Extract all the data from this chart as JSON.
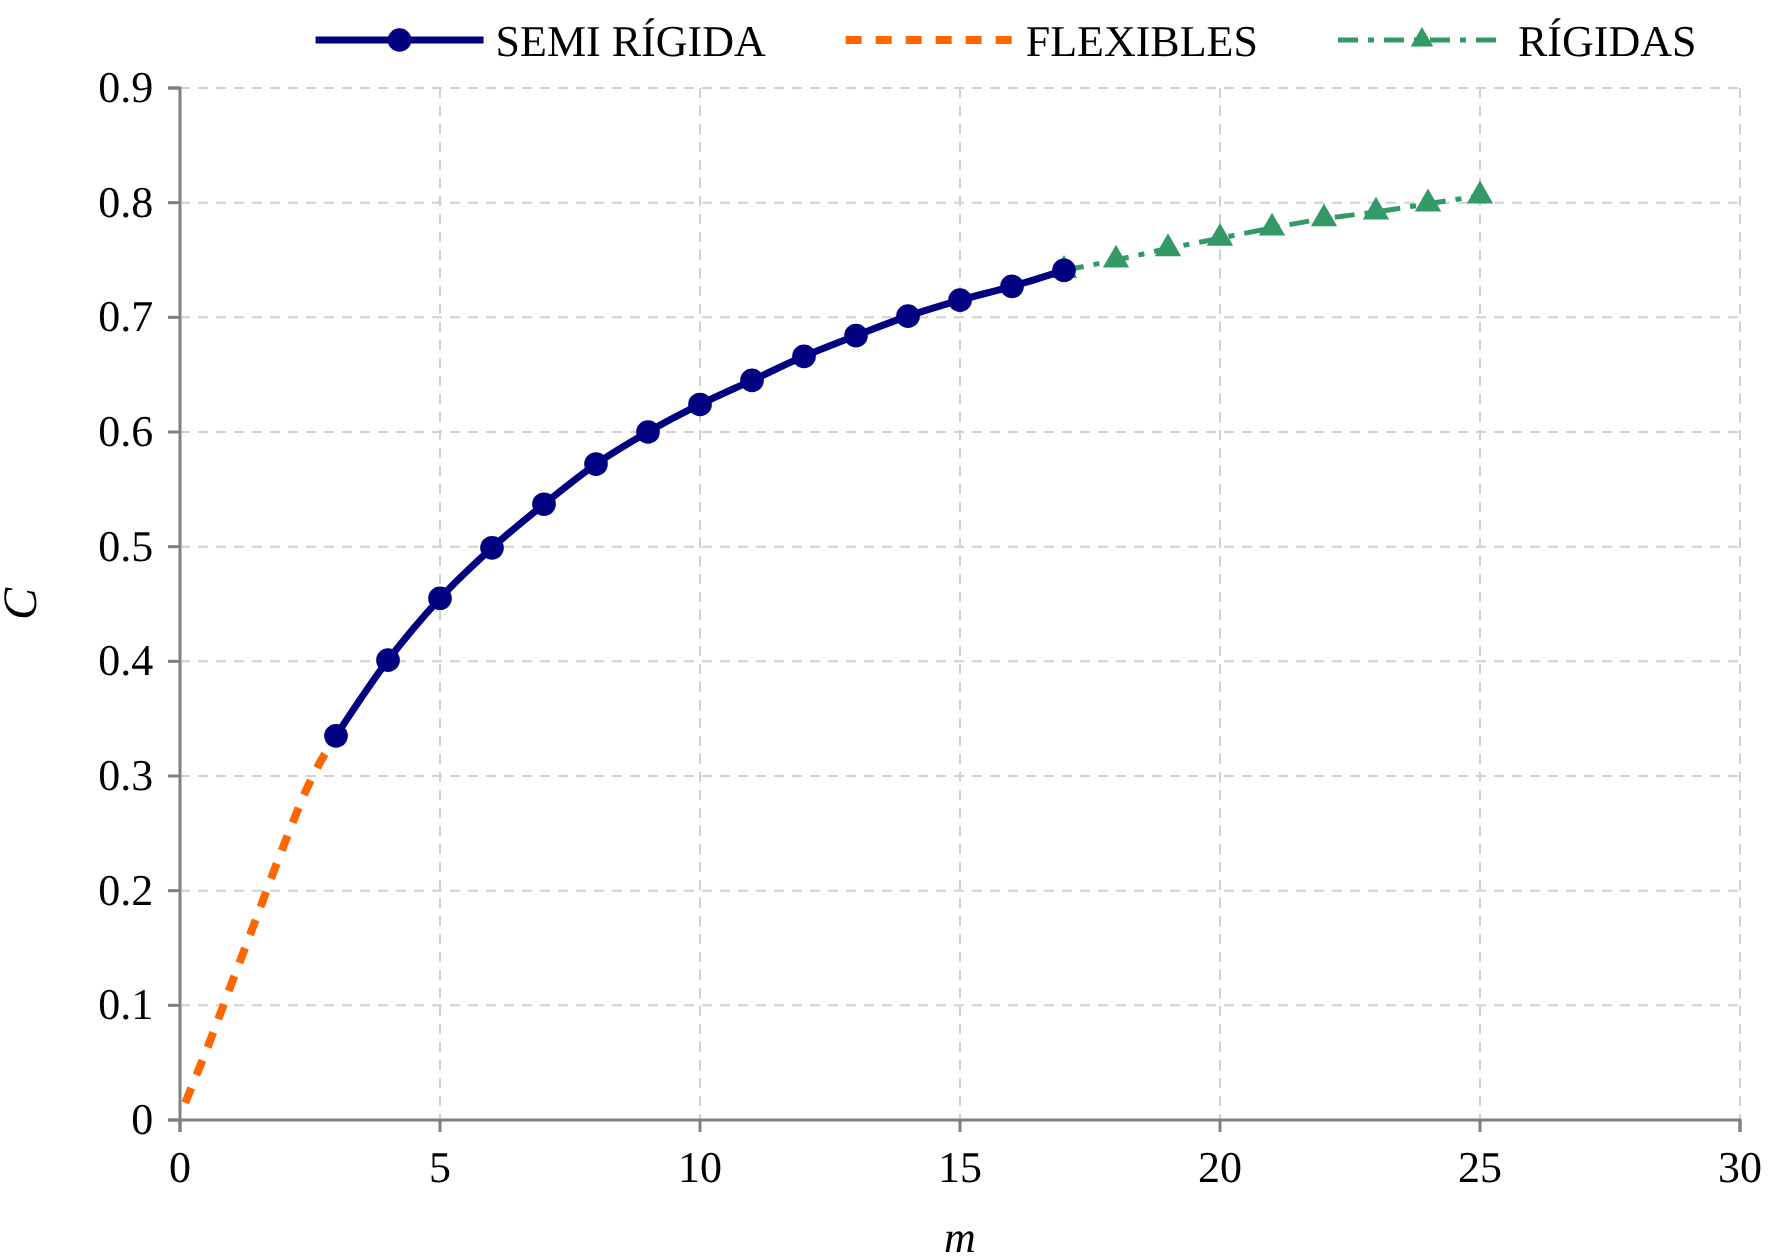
{
  "chart_data": {
    "type": "line",
    "xlabel": "m",
    "ylabel": "C",
    "xlim": [
      0,
      30
    ],
    "xticks": [
      0,
      5,
      10,
      15,
      20,
      25,
      30
    ],
    "ylim": [
      0,
      0.9
    ],
    "yticks": [
      0,
      0.1,
      0.2,
      0.3,
      0.4,
      0.5,
      0.6,
      0.7,
      0.8,
      0.9
    ],
    "grid": true,
    "legend": "top",
    "series": [
      {
        "name": "SEMI RÍGIDA",
        "color": "#000080",
        "marker": "circle",
        "line_style": "solid",
        "x": [
          3,
          4,
          5,
          6,
          7,
          8,
          9,
          10,
          11,
          12,
          13,
          14,
          15,
          16,
          17
        ],
        "values": [
          0.335,
          0.401,
          0.455,
          0.499,
          0.537,
          0.572,
          0.6,
          0.624,
          0.645,
          0.666,
          0.684,
          0.701,
          0.715,
          0.727,
          0.741
        ]
      },
      {
        "name": "FLEXIBLES",
        "color": "#ff6600",
        "marker": "none",
        "line_style": "dashed",
        "x": [
          0.1,
          0.5,
          1,
          1.5,
          2,
          2.5,
          3
        ],
        "values": [
          0.015,
          0.06,
          0.12,
          0.18,
          0.24,
          0.295,
          0.335
        ]
      },
      {
        "name": "RÍGIDAS",
        "color": "#339966",
        "marker": "triangle",
        "line_style": "dashdot",
        "x": [
          17,
          18,
          19,
          20,
          21,
          22,
          23,
          24,
          25
        ],
        "values": [
          0.741,
          0.75,
          0.76,
          0.769,
          0.778,
          0.786,
          0.792,
          0.799,
          0.806
        ]
      }
    ]
  }
}
